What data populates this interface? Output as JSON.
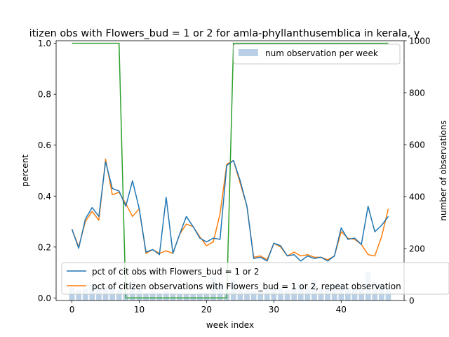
{
  "chart_data": {
    "type": "line",
    "title": "itizen obs with Flowers_bud = 1 or 2 for amla-phyllanthusemblica in kerala, y",
    "xlabel": "week index",
    "ylabel": "percent",
    "y2label": "number of observations",
    "xlim": [
      -2.35,
      49.35
    ],
    "ylim": [
      -0.01,
      1.01
    ],
    "y2lim": [
      0,
      1000
    ],
    "xticks": [
      0,
      10,
      20,
      30,
      40
    ],
    "yticks": [
      "0.0",
      "0.2",
      "0.4",
      "0.6",
      "0.8",
      "1.0"
    ],
    "y2ticks": [
      "0",
      "200",
      "400",
      "600",
      "800",
      "1000"
    ],
    "x": [
      0,
      1,
      2,
      3,
      4,
      5,
      6,
      7,
      8,
      9,
      10,
      11,
      12,
      13,
      14,
      15,
      16,
      17,
      18,
      19,
      20,
      21,
      22,
      23,
      24,
      25,
      26,
      27,
      28,
      29,
      30,
      31,
      32,
      33,
      34,
      35,
      36,
      37,
      38,
      39,
      40,
      41,
      42,
      43,
      44,
      45,
      46,
      47
    ],
    "series": [
      {
        "name": "pct of cit obs with Flowers_bud = 1 or 2",
        "color": "#1f77b4",
        "values": [
          0.27,
          0.195,
          0.31,
          0.355,
          0.32,
          0.535,
          0.43,
          0.42,
          0.36,
          0.46,
          0.35,
          0.18,
          0.19,
          0.17,
          0.395,
          0.175,
          0.25,
          0.32,
          0.28,
          0.235,
          0.22,
          0.235,
          0.23,
          0.52,
          0.54,
          0.46,
          0.36,
          0.155,
          0.16,
          0.145,
          0.215,
          0.205,
          0.165,
          0.17,
          0.145,
          0.165,
          0.155,
          0.16,
          0.145,
          0.165,
          0.275,
          0.23,
          0.235,
          0.21,
          0.36,
          0.26,
          0.285,
          0.32
        ]
      },
      {
        "name": "pct of citizen observations with Flowers_bud = 1 or 2, repeat observation",
        "color": "#ff7f0e",
        "values": [
          0.27,
          0.2,
          0.3,
          0.34,
          0.305,
          0.545,
          0.405,
          0.415,
          0.37,
          0.32,
          0.35,
          0.175,
          0.19,
          0.175,
          0.185,
          0.175,
          0.25,
          0.29,
          0.28,
          0.24,
          0.205,
          0.22,
          0.33,
          0.525,
          0.54,
          0.45,
          0.36,
          0.16,
          0.165,
          0.15,
          0.215,
          0.2,
          0.165,
          0.18,
          0.165,
          0.17,
          0.16,
          0.16,
          0.15,
          0.165,
          0.26,
          0.235,
          0.23,
          0.21,
          0.17,
          0.165,
          0.24,
          0.35
        ]
      },
      {
        "name": "",
        "color": "#2ca02c",
        "values": [
          1,
          1,
          1,
          1,
          1,
          1,
          1,
          1,
          0,
          0,
          0,
          0,
          0,
          0,
          0,
          0,
          0,
          0,
          0,
          0,
          0,
          0,
          0,
          0,
          1,
          1,
          1,
          1,
          1,
          1,
          1,
          1,
          1,
          1,
          1,
          1,
          1,
          1,
          1,
          1,
          1,
          1,
          1,
          1,
          1,
          1,
          1,
          1
        ]
      }
    ],
    "bars": {
      "name": "num observation per week",
      "color": "#b9d0e6",
      "axis": "right",
      "values": [
        50,
        40,
        45,
        60,
        50,
        55,
        45,
        40,
        30,
        70,
        45,
        30,
        35,
        30,
        35,
        30,
        25,
        25,
        25,
        30,
        30,
        90,
        60,
        30,
        80,
        40,
        40,
        35,
        40,
        40,
        45,
        50,
        40,
        50,
        60,
        55,
        80,
        50,
        55,
        60,
        60,
        50,
        45,
        40,
        110,
        70,
        60,
        50
      ]
    },
    "legends": {
      "upper": [
        "num observation per week"
      ],
      "lower": [
        "pct of cit obs with Flowers_bud = 1 or 2",
        "pct of citizen observations with Flowers_bud = 1 or 2, repeat observation"
      ],
      "upper_placement": "top-right",
      "lower_placement": "bottom"
    },
    "grid": false
  }
}
